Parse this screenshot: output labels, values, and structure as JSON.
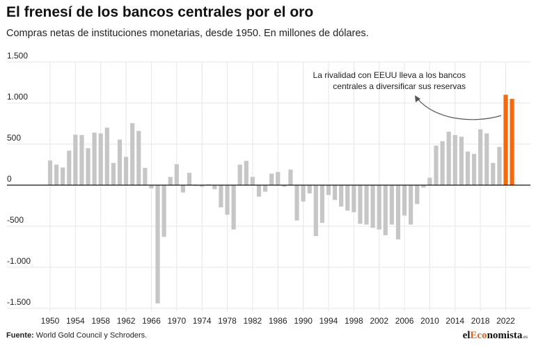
{
  "header": {
    "title": "El frenesí de los bancos centrales por el oro",
    "subtitle": "Compras netas de instituciones monetarias, desde 1950. En millones de dólares."
  },
  "footer": {
    "source_label": "Fuente:",
    "source_text": "World Gold Council y Schroders."
  },
  "brand": {
    "prefix": "el",
    "accent": "Eco",
    "suffix": "nomista",
    "tld": ".es"
  },
  "colors": {
    "bar": "#c6c6c6",
    "highlight": "#f26b0f",
    "grid": "#e6e6e6",
    "axis": "#111111",
    "annotation": "#555555"
  },
  "chart_data": {
    "type": "bar",
    "title": "El frenesí de los bancos centrales por el oro",
    "ylim": [
      -1500,
      1500
    ],
    "yticks": [
      1500,
      1000,
      500,
      0,
      -500,
      -1000,
      -1500
    ],
    "ytick_labels": [
      "1.500",
      "1.000",
      "500",
      "0",
      "-500",
      "-1.000",
      "-1.500"
    ],
    "xtick_labels": [
      "1950",
      "1954",
      "1958",
      "1962",
      "1966",
      "1970",
      "1974",
      "1978",
      "1982",
      "1986",
      "1990",
      "1994",
      "1998",
      "2002",
      "2006",
      "2010",
      "2014",
      "2018",
      "2022"
    ],
    "grid": true,
    "x": [
      1950,
      1951,
      1952,
      1953,
      1954,
      1955,
      1956,
      1957,
      1958,
      1959,
      1960,
      1961,
      1962,
      1963,
      1964,
      1965,
      1966,
      1967,
      1968,
      1969,
      1970,
      1971,
      1972,
      1973,
      1974,
      1975,
      1976,
      1977,
      1978,
      1979,
      1980,
      1981,
      1982,
      1983,
      1984,
      1985,
      1986,
      1987,
      1988,
      1989,
      1990,
      1991,
      1992,
      1993,
      1994,
      1995,
      1996,
      1997,
      1998,
      1999,
      2000,
      2001,
      2002,
      2003,
      2004,
      2005,
      2006,
      2007,
      2008,
      2009,
      2010,
      2011,
      2012,
      2013,
      2014,
      2015,
      2016,
      2017,
      2018,
      2019,
      2020,
      2021,
      2022,
      2023
    ],
    "values": [
      300,
      250,
      215,
      420,
      615,
      610,
      450,
      640,
      630,
      700,
      270,
      555,
      345,
      755,
      660,
      210,
      -40,
      -1440,
      -630,
      100,
      255,
      -90,
      150,
      -10,
      -20,
      10,
      -50,
      -270,
      -360,
      -540,
      250,
      295,
      100,
      -140,
      -80,
      140,
      160,
      -20,
      190,
      -430,
      -200,
      -100,
      -620,
      -460,
      -120,
      -180,
      -260,
      -310,
      -330,
      -470,
      -480,
      -520,
      -540,
      -610,
      -480,
      -660,
      -370,
      -480,
      -230,
      -30,
      90,
      480,
      535,
      650,
      610,
      590,
      410,
      380,
      680,
      630,
      270,
      465,
      1100,
      1050
    ],
    "highlight_years": [
      2022,
      2023
    ],
    "annotation": {
      "lines": [
        "La rivalidad con EEUU lleva a los bancos",
        "centrales a diversificar sus reservas"
      ]
    }
  }
}
